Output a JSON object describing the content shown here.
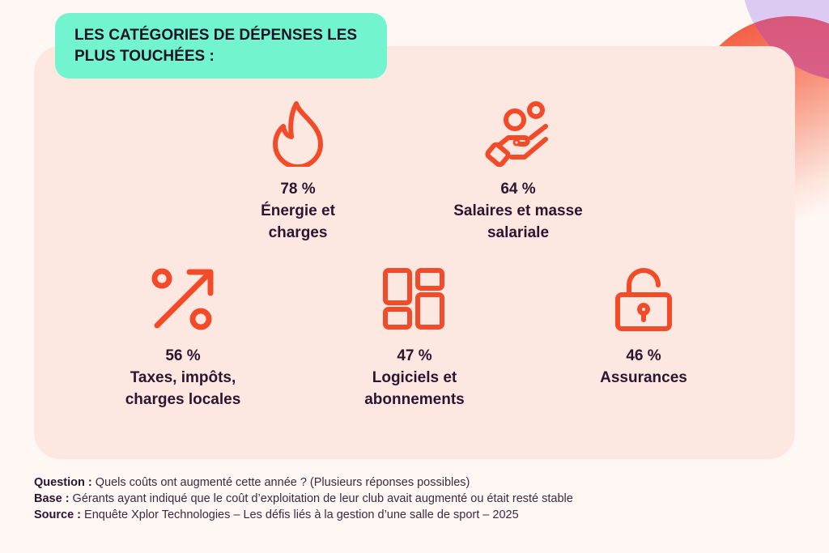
{
  "title": "LES CATÉGORIES DE DÉPENSES LES PLUS TOUCHÉES :",
  "accent": "#f24b2a",
  "items": [
    {
      "icon": "flame-icon",
      "percent": "78 %",
      "label_1": "Énergie et",
      "label_2": "charges"
    },
    {
      "icon": "hand-coins-icon",
      "percent": "64 %",
      "label_1": "Salaires et masse",
      "label_2": "salariale"
    },
    {
      "icon": "percent-arrow-icon",
      "percent": "56 %",
      "label_1": "Taxes, impôts,",
      "label_2": "charges locales"
    },
    {
      "icon": "dashboard-grid-icon",
      "percent": "47 %",
      "label_1": "Logiciels et",
      "label_2": "abonnements"
    },
    {
      "icon": "unlocked-padlock-icon",
      "percent": "46 %",
      "label_1": "Assurances",
      "label_2": ""
    }
  ],
  "footnotes": [
    {
      "key": "Question :",
      "text": " Quels coûts ont augmenté cette année ? (Plusieurs réponses possibles)"
    },
    {
      "key": "Base :",
      "text": " Gérants ayant indiqué que le coût d’exploitation de leur club avait augmenté ou était resté stable"
    },
    {
      "key": "Source :",
      "text": " Enquête Xplor Technologies – Les défis liés à la gestion d’une salle de sport – 2025"
    }
  ]
}
